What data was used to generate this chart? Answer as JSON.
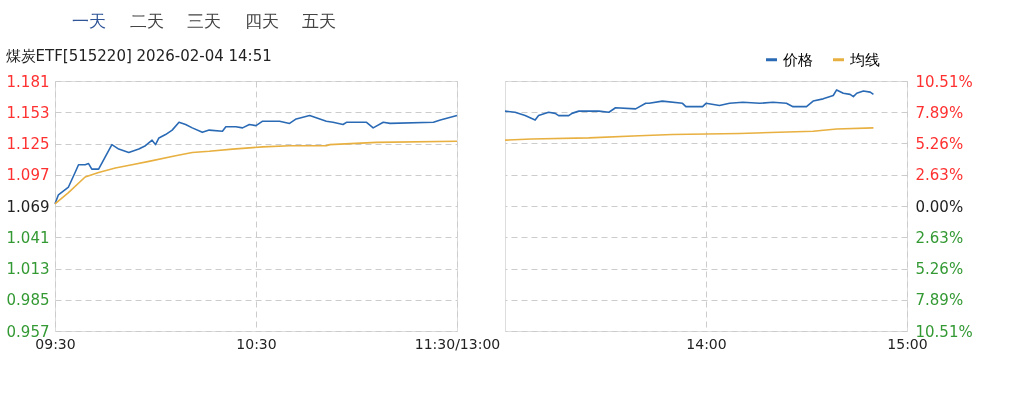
{
  "chart_data": [
    {
      "type": "line",
      "title": "煤炭ETF[515220] 2026-02-04 14:51",
      "annotations": [
        "一天",
        "二天",
        "三天",
        "四天",
        "五天"
      ],
      "xlim": [
        9.5,
        11.5
      ],
      "xticks": [
        {
          "value": 9.5,
          "label": "09:30"
        },
        {
          "value": 10.5,
          "label": "10:30"
        },
        {
          "value": 11.5,
          "label": "11:30/13:00"
        }
      ],
      "ylim": [
        0.957,
        1.181
      ],
      "yticks": [
        0.957,
        0.985,
        1.013,
        1.041,
        1.069,
        1.097,
        1.125,
        1.153,
        1.181
      ],
      "grid": true,
      "legend": "top right",
      "marker": "none",
      "line_style": "solid",
      "series": [
        {
          "name": "价格",
          "color": "#2a6ab5",
          "x": [
            9.5,
            9.517,
            9.567,
            9.6,
            9.617,
            9.65,
            9.667,
            9.683,
            9.717,
            9.75,
            9.783,
            9.817,
            9.867,
            9.917,
            9.95,
            9.983,
            10.0,
            10.017,
            10.05,
            10.083,
            10.117,
            10.15,
            10.183,
            10.233,
            10.267,
            10.333,
            10.35,
            10.4,
            10.433,
            10.467,
            10.5,
            10.533,
            10.617,
            10.667,
            10.7,
            10.767,
            10.85,
            10.883,
            10.933,
            10.95,
            11.05,
            11.083,
            11.133,
            11.167,
            11.383,
            11.417,
            11.5
          ],
          "values": [
            1.071,
            1.079,
            1.086,
            1.099,
            1.106,
            1.106,
            1.107,
            1.102,
            1.102,
            1.113,
            1.124,
            1.12,
            1.117,
            1.12,
            1.123,
            1.128,
            1.124,
            1.13,
            1.133,
            1.137,
            1.144,
            1.142,
            1.139,
            1.135,
            1.137,
            1.136,
            1.14,
            1.14,
            1.139,
            1.142,
            1.141,
            1.145,
            1.145,
            1.143,
            1.147,
            1.15,
            1.145,
            1.144,
            1.142,
            1.144,
            1.144,
            1.139,
            1.144,
            1.143,
            1.144,
            1.146,
            1.15
          ]
        },
        {
          "name": "均线",
          "color": "#e8b040",
          "x": [
            9.5,
            9.567,
            9.65,
            9.717,
            9.8,
            9.883,
            9.967,
            10.1,
            10.183,
            10.267,
            10.383,
            10.533,
            10.667,
            10.85,
            10.867,
            11.1,
            11.5
          ],
          "values": [
            1.071,
            1.081,
            1.095,
            1.099,
            1.103,
            1.106,
            1.109,
            1.114,
            1.117,
            1.118,
            1.12,
            1.122,
            1.123,
            1.123,
            1.124,
            1.126,
            1.127
          ]
        }
      ]
    },
    {
      "type": "line",
      "xlim": [
        13,
        15
      ],
      "xticks": [
        {
          "value": 14,
          "label": "14:00"
        },
        {
          "value": 15,
          "label": "15:00"
        }
      ],
      "ylim": [
        0.957,
        1.181
      ],
      "yticks": [
        0.957,
        0.985,
        1.013,
        1.041,
        1.069,
        1.097,
        1.125,
        1.153,
        1.181
      ],
      "y2lim": [
        -10.51,
        10.51
      ],
      "y2ticks": [
        {
          "value": -10.51,
          "label": "10.51%"
        },
        {
          "value": -7.89,
          "label": "7.89%"
        },
        {
          "value": -5.26,
          "label": "5.26%"
        },
        {
          "value": -2.63,
          "label": "2.63%"
        },
        {
          "value": 0,
          "label": "0.00%"
        },
        {
          "value": 2.63,
          "label": "2.63%"
        },
        {
          "value": 5.26,
          "label": "5.26%"
        },
        {
          "value": 7.89,
          "label": "7.89%"
        },
        {
          "value": 10.51,
          "label": "10.51%"
        }
      ],
      "tick_labels": "x",
      "grid": true,
      "marker": "none",
      "line_style": "solid",
      "series": [
        {
          "name": "价格",
          "color": "#2a6ab5",
          "x": [
            13.0,
            13.05,
            13.1,
            13.15,
            13.167,
            13.217,
            13.25,
            13.267,
            13.317,
            13.333,
            13.367,
            13.467,
            13.517,
            13.55,
            13.65,
            13.7,
            13.717,
            13.783,
            13.883,
            13.9,
            13.983,
            14.0,
            14.067,
            14.117,
            14.183,
            14.267,
            14.333,
            14.4,
            14.433,
            14.5,
            14.533,
            14.583,
            14.633,
            14.65,
            14.683,
            14.717,
            14.733,
            14.75,
            14.783,
            14.817,
            14.833
          ],
          "values": [
            1.154,
            1.153,
            1.15,
            1.146,
            1.15,
            1.153,
            1.152,
            1.15,
            1.15,
            1.152,
            1.154,
            1.154,
            1.153,
            1.157,
            1.156,
            1.161,
            1.161,
            1.163,
            1.161,
            1.158,
            1.158,
            1.161,
            1.159,
            1.161,
            1.162,
            1.161,
            1.162,
            1.161,
            1.158,
            1.158,
            1.163,
            1.165,
            1.168,
            1.173,
            1.17,
            1.169,
            1.167,
            1.17,
            1.172,
            1.171,
            1.169
          ]
        },
        {
          "name": "均线",
          "color": "#e8b040",
          "x": [
            13.0,
            13.133,
            13.417,
            13.667,
            13.833,
            14.167,
            14.533,
            14.65,
            14.833
          ],
          "values": [
            1.128,
            1.129,
            1.13,
            1.132,
            1.133,
            1.134,
            1.136,
            1.138,
            1.139
          ]
        }
      ]
    }
  ]
}
